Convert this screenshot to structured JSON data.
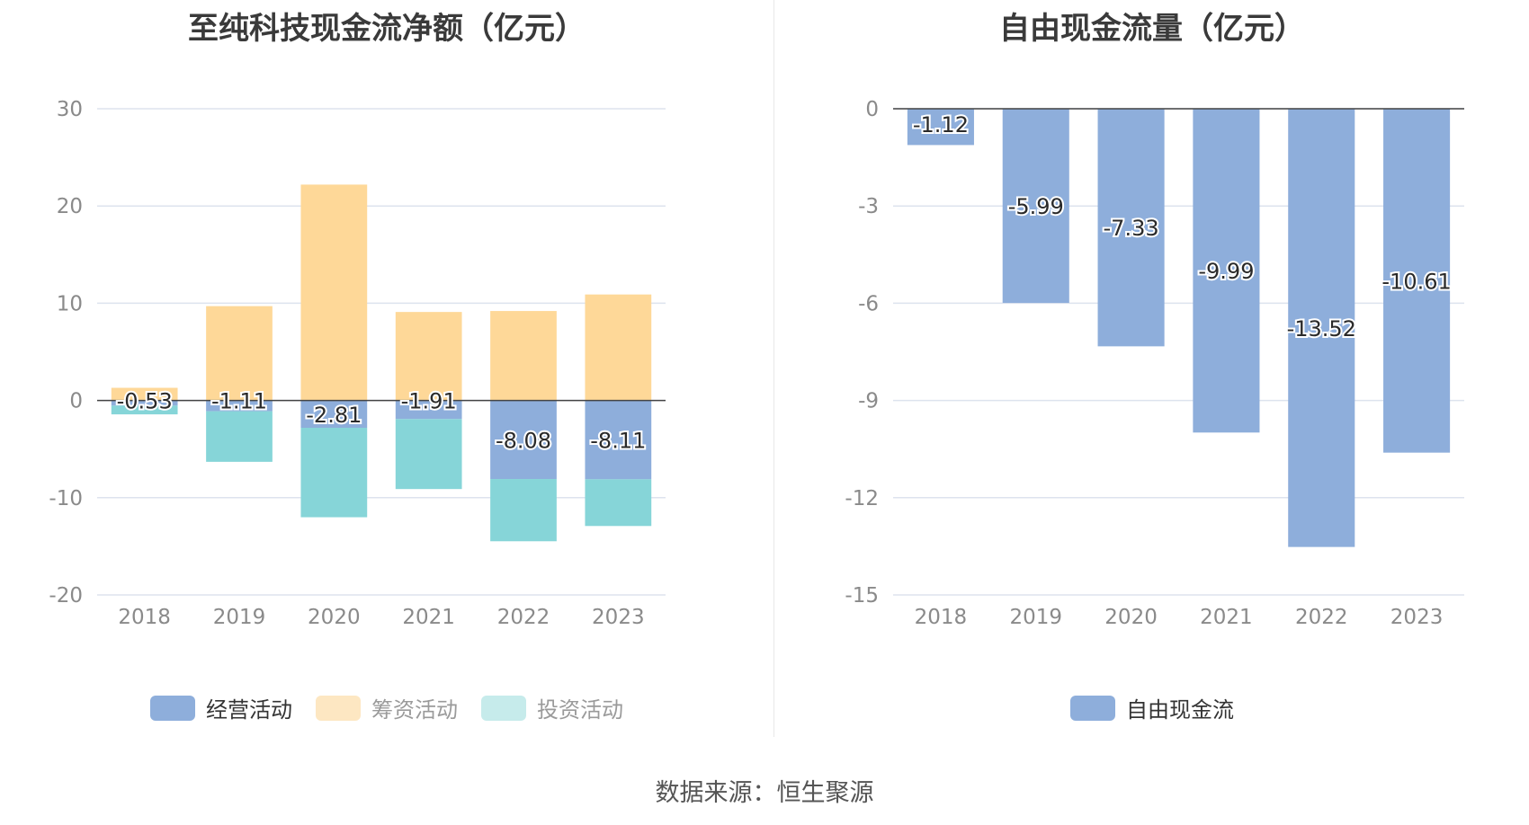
{
  "left_chart": {
    "title": "至纯科技现金流净额（亿元）",
    "legend": [
      {
        "label": "经营活动",
        "color": "#8eaedb",
        "text_color": "#333333"
      },
      {
        "label": "筹资活动",
        "color": "#fde7c2",
        "text_color": "#9a9a9a"
      },
      {
        "label": "投资活动",
        "color": "#c6ebeb",
        "text_color": "#9a9a9a"
      }
    ]
  },
  "right_chart": {
    "title": "自由现金流量（亿元）",
    "legend": [
      {
        "label": "自由现金流",
        "color": "#8eaedb",
        "text_color": "#333333"
      }
    ]
  },
  "source": "数据来源：恒生聚源",
  "chart_data": [
    {
      "type": "bar",
      "stacked": true,
      "title": "至纯科技现金流净额（亿元）",
      "categories": [
        "2018",
        "2019",
        "2020",
        "2021",
        "2022",
        "2023"
      ],
      "ylim": [
        -20,
        30
      ],
      "yticks": [
        "30",
        "20",
        "10",
        "0",
        "-10",
        "-20"
      ],
      "grid": true,
      "legend_position": "bottom",
      "series": [
        {
          "name": "经营活动",
          "color": "#8eaedb",
          "values": [
            -0.53,
            -1.11,
            -2.81,
            -1.91,
            -8.08,
            -8.11
          ],
          "labels": [
            "-0.53",
            "-1.11",
            "-2.81",
            "-1.91",
            "-8.08",
            "-8.11"
          ]
        },
        {
          "name": "筹资活动",
          "color": "#fed898",
          "values": [
            1.3,
            9.7,
            22.2,
            9.1,
            9.2,
            10.9
          ]
        },
        {
          "name": "投资活动",
          "color": "#86d5d8",
          "values": [
            -0.9,
            -5.2,
            -9.2,
            -7.2,
            -6.4,
            -4.8
          ]
        }
      ]
    },
    {
      "type": "bar",
      "title": "自由现金流量（亿元）",
      "categories": [
        "2018",
        "2019",
        "2020",
        "2021",
        "2022",
        "2023"
      ],
      "ylim": [
        -15,
        0
      ],
      "yticks": [
        "0",
        "-3",
        "-6",
        "-9",
        "-12",
        "-15"
      ],
      "grid": true,
      "legend_position": "bottom",
      "series": [
        {
          "name": "自由现金流",
          "color": "#8eaedb",
          "values": [
            -1.12,
            -5.99,
            -7.33,
            -9.99,
            -13.52,
            -10.61
          ],
          "labels": [
            "-1.12",
            "-5.99",
            "-7.33",
            "-9.99",
            "-13.52",
            "-10.61"
          ]
        }
      ]
    }
  ]
}
